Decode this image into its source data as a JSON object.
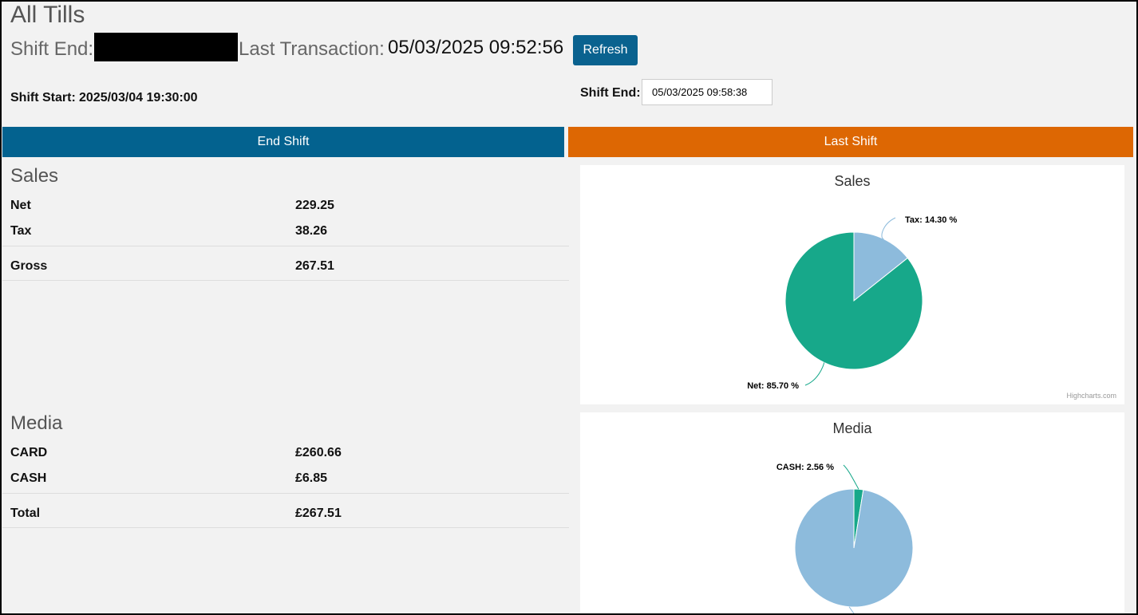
{
  "header": {
    "title": "All Tills",
    "shift_end_label": "Shift End:",
    "last_transaction_label": "Last Transaction:",
    "last_transaction_value": "05/03/2025 09:52:56",
    "refresh_label": "Refresh"
  },
  "shift": {
    "start_label": "Shift Start:",
    "start_value": "2025/03/04 19:30:00",
    "end_label": "Shift End:",
    "end_value": "05/03/2025 09:58:38"
  },
  "buttons": {
    "end_shift": "End Shift",
    "last_shift": "Last Shift"
  },
  "sales": {
    "title": "Sales",
    "rows": [
      {
        "label": "Net",
        "value": "229.25"
      },
      {
        "label": "Tax",
        "value": "38.26"
      },
      {
        "label": "Gross",
        "value": "267.51"
      }
    ]
  },
  "media": {
    "title": "Media",
    "rows": [
      {
        "label": "CARD",
        "value": "£260.66"
      },
      {
        "label": "CASH",
        "value": "£6.85"
      },
      {
        "label": "Total",
        "value": "£267.51"
      }
    ]
  },
  "colors": {
    "primary": "#03628f",
    "accent": "#dd6703",
    "pie_green": "#17a88a",
    "pie_blue": "#8dbbdc"
  },
  "chart_data": [
    {
      "type": "pie",
      "title": "Sales",
      "slices": [
        {
          "name": "Tax",
          "value": 14.3,
          "label": "Tax: 14.30 %",
          "color": "#8dbbdc"
        },
        {
          "name": "Net",
          "value": 85.7,
          "label": "Net: 85.70 %",
          "color": "#17a88a"
        }
      ],
      "credits": "Highcharts.com"
    },
    {
      "type": "pie",
      "title": "Media",
      "slices": [
        {
          "name": "CASH",
          "value": 2.56,
          "label": "CASH: 2.56 %",
          "color": "#17a88a"
        },
        {
          "name": "CARD",
          "value": 97.44,
          "label": "",
          "color": "#8dbbdc"
        }
      ]
    }
  ]
}
